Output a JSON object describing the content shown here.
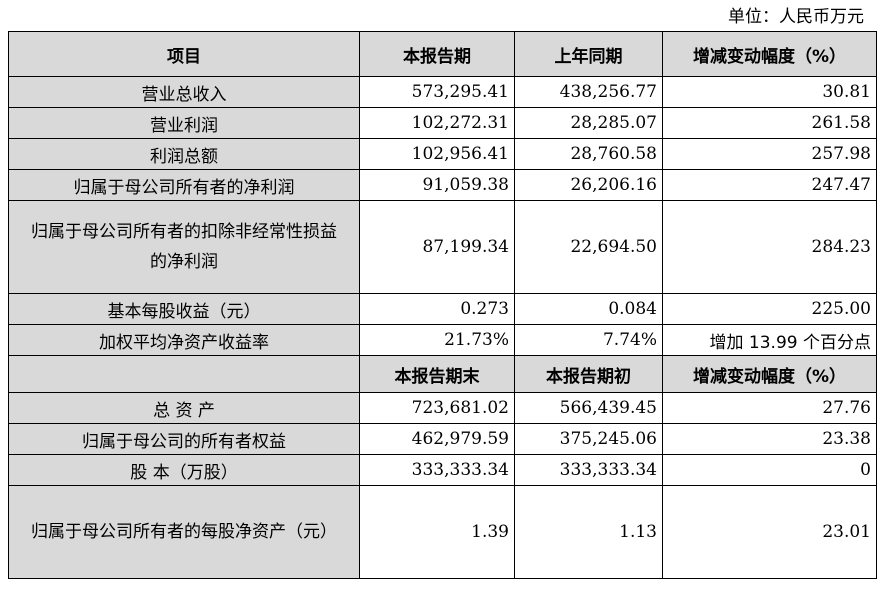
{
  "unit": "单位：人民币万元",
  "header1": [
    "项目",
    "本报告期",
    "上年同期",
    "增减变动幅度（%）"
  ],
  "rows1": [
    [
      "营业总收入",
      "573,295.41",
      "438,256.77",
      "30.81"
    ],
    [
      "营业利润",
      "102,272.31",
      "28,285.07",
      "261.58"
    ],
    [
      "利润总额",
      "102,956.41",
      "28,760.58",
      "257.98"
    ],
    [
      "归属于母公司所有者的净利润",
      "91,059.38",
      "26,206.16",
      "247.47"
    ],
    [
      "归属于母公司所有者的扣除非经常性损益的净利润",
      "87,199.34",
      "22,694.50",
      "284.23"
    ],
    [
      "基本每股收益（元）",
      "0.273",
      "0.084",
      "225.00"
    ],
    [
      "加权平均净资产收益率",
      "21.73%",
      "7.74%",
      "增加 13.99 个百分点"
    ]
  ],
  "header2": [
    "",
    "本报告期末",
    "本报告期初",
    "增减变动幅度（%）"
  ],
  "rows2": [
    [
      "总 资 产",
      "723,681.02",
      "566,439.45",
      "27.76"
    ],
    [
      "归属于母公司的所有者权益",
      "462,979.59",
      "375,245.06",
      "23.38"
    ],
    [
      "股 本（万股）",
      "333,333.34",
      "333,333.34",
      "0"
    ],
    [
      "归属于母公司所有者的每股净资产（元）",
      "1.39",
      "1.13",
      "23.01"
    ]
  ]
}
